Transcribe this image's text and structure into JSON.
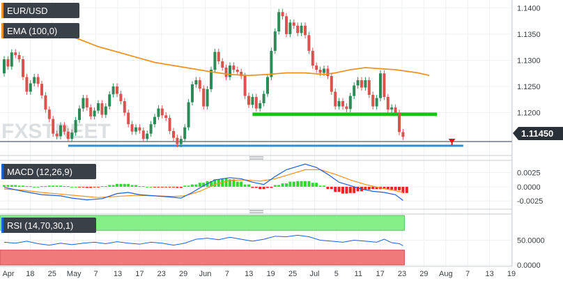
{
  "chart_data": {
    "type": "candlestick",
    "symbol": "EUR/USD",
    "last_price": "1.11450",
    "colors": {
      "up": "#2e8b57",
      "down": "#d9534f",
      "ema": "#f0921e",
      "support": "#16c316",
      "low_line": "#2b8fd9",
      "macd_line": "#1f5fd6",
      "signal_line": "#f0921e",
      "hist_up": "#33d633",
      "hist_down": "#ee2222",
      "rsi_line": "#1f5fd6",
      "overbought": "#86ee86",
      "oversold": "#f07a7a",
      "arrow": "#e01414",
      "label_bg": "#3a4048"
    },
    "x_labels": [
      "Apr",
      "18",
      "25",
      "May",
      "7",
      "13",
      "17",
      "23",
      "29",
      "Jun",
      "7",
      "13",
      "19",
      "25",
      "Jul",
      "5",
      "11",
      "17",
      "23",
      "29",
      "Aug",
      "7",
      "13",
      "19"
    ],
    "price_panel": {
      "y_ticks": [
        "1.1400",
        "1.1350",
        "1.1300",
        "1.1250",
        "1.1200"
      ],
      "y_range": [
        1.1125,
        1.1415
      ],
      "ema_label": "EMA (100,0)",
      "ema": [
        [
          0,
          1.1358
        ],
        [
          10,
          1.1358
        ],
        [
          15,
          1.1352
        ],
        [
          20,
          1.134
        ],
        [
          25,
          1.1326
        ],
        [
          30,
          1.1316
        ],
        [
          35,
          1.1306
        ],
        [
          40,
          1.1296
        ],
        [
          45,
          1.129
        ],
        [
          50,
          1.1284
        ],
        [
          55,
          1.1278
        ],
        [
          60,
          1.1273
        ],
        [
          65,
          1.1271
        ],
        [
          70,
          1.1273
        ],
        [
          75,
          1.1276
        ],
        [
          80,
          1.1276
        ],
        [
          85,
          1.1273
        ],
        [
          88,
          1.1276
        ],
        [
          92,
          1.1282
        ],
        [
          96,
          1.1286
        ],
        [
          100,
          1.1284
        ],
        [
          104,
          1.1282
        ],
        [
          107,
          1.1279
        ],
        [
          110,
          1.1276
        ],
        [
          113,
          1.1271
        ]
      ],
      "support_level": 1.1197,
      "support_range": [
        66,
        115
      ],
      "low_level": 1.1137,
      "low_range": [
        17,
        122
      ],
      "arrow_at": 119,
      "candles": [
        [
          0,
          1.1275,
          1.1302
        ],
        [
          1,
          1.1302,
          1.1288
        ],
        [
          2,
          1.1288,
          1.1315
        ],
        [
          3,
          1.1315,
          1.131
        ],
        [
          4,
          1.131,
          1.1302
        ],
        [
          5,
          1.1302,
          1.1268
        ],
        [
          6,
          1.1268,
          1.124
        ],
        [
          7,
          1.124,
          1.1256
        ],
        [
          8,
          1.1256,
          1.1268
        ],
        [
          9,
          1.1268,
          1.1255
        ],
        [
          10,
          1.1255,
          1.1233
        ],
        [
          11,
          1.1233,
          1.1206
        ],
        [
          12,
          1.1206,
          1.1188
        ],
        [
          13,
          1.1188,
          1.116
        ],
        [
          14,
          1.116,
          1.1155
        ],
        [
          15,
          1.1155,
          1.1176
        ],
        [
          16,
          1.1176,
          1.1164
        ],
        [
          17,
          1.1164,
          1.115
        ],
        [
          18,
          1.115,
          1.1162
        ],
        [
          19,
          1.1162,
          1.1186
        ],
        [
          20,
          1.1186,
          1.1208
        ],
        [
          21,
          1.1208,
          1.1228
        ],
        [
          22,
          1.1228,
          1.121
        ],
        [
          23,
          1.121,
          1.1193
        ],
        [
          24,
          1.1193,
          1.1204
        ],
        [
          25,
          1.1204,
          1.1218
        ],
        [
          26,
          1.1218,
          1.1196
        ],
        [
          27,
          1.1196,
          1.1212
        ],
        [
          28,
          1.1212,
          1.1235
        ],
        [
          29,
          1.1235,
          1.125
        ],
        [
          30,
          1.125,
          1.1236
        ],
        [
          31,
          1.1236,
          1.1222
        ],
        [
          32,
          1.1222,
          1.12
        ],
        [
          33,
          1.12,
          1.1178
        ],
        [
          34,
          1.1178,
          1.1164
        ],
        [
          35,
          1.1164,
          1.1172
        ],
        [
          36,
          1.1172,
          1.1166
        ],
        [
          37,
          1.1166,
          1.115
        ],
        [
          38,
          1.115,
          1.116
        ],
        [
          39,
          1.116,
          1.1178
        ],
        [
          40,
          1.1178,
          1.1192
        ],
        [
          41,
          1.1192,
          1.1208
        ],
        [
          42,
          1.1208,
          1.1195
        ],
        [
          43,
          1.1195,
          1.119
        ],
        [
          44,
          1.119,
          1.1165
        ],
        [
          45,
          1.1165,
          1.1152
        ],
        [
          46,
          1.1152,
          1.114
        ],
        [
          47,
          1.114,
          1.115
        ],
        [
          48,
          1.115,
          1.1172
        ],
        [
          49,
          1.1172,
          1.122
        ],
        [
          50,
          1.122,
          1.1254
        ],
        [
          51,
          1.1254,
          1.1262
        ],
        [
          52,
          1.1262,
          1.1246
        ],
        [
          53,
          1.1246,
          1.1212
        ],
        [
          54,
          1.1212,
          1.1245
        ],
        [
          55,
          1.1245,
          1.1282
        ],
        [
          56,
          1.1282,
          1.1316
        ],
        [
          57,
          1.1316,
          1.1298
        ],
        [
          58,
          1.1298,
          1.1286
        ],
        [
          59,
          1.1286,
          1.1268
        ],
        [
          60,
          1.1268,
          1.129
        ],
        [
          61,
          1.129,
          1.1282
        ],
        [
          62,
          1.1282,
          1.1278
        ],
        [
          63,
          1.1278,
          1.127
        ],
        [
          64,
          1.127,
          1.1232
        ],
        [
          65,
          1.1232,
          1.1215
        ],
        [
          66,
          1.1215,
          1.123
        ],
        [
          67,
          1.123,
          1.1208
        ],
        [
          68,
          1.1208,
          1.1218
        ],
        [
          69,
          1.1218,
          1.1236
        ],
        [
          70,
          1.1236,
          1.1268
        ],
        [
          71,
          1.1268,
          1.1318
        ],
        [
          72,
          1.1318,
          1.1355
        ],
        [
          73,
          1.1355,
          1.1392
        ],
        [
          74,
          1.1392,
          1.1384
        ],
        [
          75,
          1.1384,
          1.135
        ],
        [
          76,
          1.135,
          1.1372
        ],
        [
          77,
          1.1372,
          1.1366
        ],
        [
          78,
          1.1366,
          1.1352
        ],
        [
          79,
          1.1352,
          1.1366
        ],
        [
          80,
          1.1366,
          1.1348
        ],
        [
          81,
          1.1348,
          1.1318
        ],
        [
          82,
          1.1318,
          1.129
        ],
        [
          83,
          1.129,
          1.1282
        ],
        [
          84,
          1.1282,
          1.1276
        ],
        [
          85,
          1.1276,
          1.1284
        ],
        [
          86,
          1.1284,
          1.127
        ],
        [
          87,
          1.127,
          1.124
        ],
        [
          88,
          1.124,
          1.1212
        ],
        [
          89,
          1.1212,
          1.1222
        ],
        [
          90,
          1.1222,
          1.1212
        ],
        [
          91,
          1.1212,
          1.1207
        ],
        [
          92,
          1.1207,
          1.1232
        ],
        [
          93,
          1.1232,
          1.1252
        ],
        [
          94,
          1.1252,
          1.1262
        ],
        [
          95,
          1.1262,
          1.1248
        ],
        [
          96,
          1.1248,
          1.1262
        ],
        [
          97,
          1.1262,
          1.1234
        ],
        [
          98,
          1.1234,
          1.1212
        ],
        [
          99,
          1.1212,
          1.1228
        ],
        [
          100,
          1.1228,
          1.1275
        ],
        [
          101,
          1.1275,
          1.123
        ],
        [
          102,
          1.123,
          1.1206
        ],
        [
          103,
          1.1206,
          1.121
        ],
        [
          104,
          1.121,
          1.12
        ],
        [
          105,
          1.12,
          1.1163
        ],
        [
          106,
          1.1163,
          1.1154
        ]
      ]
    },
    "macd_panel": {
      "title": "MACD (12,26,9)",
      "y_ticks": [
        "0.0025",
        "0.0000",
        "-0.0025"
      ],
      "y_range": [
        -0.0037,
        0.0044
      ],
      "macd": [
        [
          0,
          -0.0001
        ],
        [
          5,
          -0.0008
        ],
        [
          10,
          -0.0014
        ],
        [
          15,
          -0.0016
        ],
        [
          18,
          -0.002
        ],
        [
          22,
          -0.0023
        ],
        [
          26,
          -0.0021
        ],
        [
          30,
          -0.0012
        ],
        [
          33,
          -0.001
        ],
        [
          36,
          -0.0014
        ],
        [
          40,
          -0.0016
        ],
        [
          44,
          -0.0018
        ],
        [
          47,
          -0.002
        ],
        [
          50,
          -0.001
        ],
        [
          53,
          0.0002
        ],
        [
          56,
          0.0012
        ],
        [
          60,
          0.0016
        ],
        [
          63,
          0.0014
        ],
        [
          66,
          0.0008
        ],
        [
          69,
          0.0004
        ],
        [
          72,
          0.0018
        ],
        [
          75,
          0.003
        ],
        [
          78,
          0.0036
        ],
        [
          80,
          0.004
        ],
        [
          83,
          0.0034
        ],
        [
          86,
          0.0022
        ],
        [
          89,
          0.0008
        ],
        [
          92,
          0.0002
        ],
        [
          95,
          -0.0004
        ],
        [
          98,
          -0.0008
        ],
        [
          101,
          -0.001
        ],
        [
          104,
          -0.0014
        ],
        [
          106,
          -0.0024
        ]
      ],
      "signal": [
        [
          0,
          -0.0004
        ],
        [
          5,
          -0.0006
        ],
        [
          10,
          -0.001
        ],
        [
          15,
          -0.0013
        ],
        [
          20,
          -0.0016
        ],
        [
          25,
          -0.0019
        ],
        [
          30,
          -0.0017
        ],
        [
          35,
          -0.0015
        ],
        [
          40,
          -0.0016
        ],
        [
          45,
          -0.0017
        ],
        [
          48,
          -0.0016
        ],
        [
          52,
          -0.0008
        ],
        [
          56,
          0.0004
        ],
        [
          60,
          0.0011
        ],
        [
          64,
          0.0012
        ],
        [
          68,
          0.001
        ],
        [
          72,
          0.0014
        ],
        [
          76,
          0.0022
        ],
        [
          80,
          0.003
        ],
        [
          84,
          0.003
        ],
        [
          88,
          0.0022
        ],
        [
          92,
          0.0012
        ],
        [
          96,
          0.0004
        ],
        [
          100,
          -0.0002
        ],
        [
          104,
          -0.0007
        ],
        [
          106,
          -0.001
        ]
      ],
      "histogram": [
        [
          0,
          0.0003
        ],
        [
          2,
          0.0003
        ],
        [
          4,
          0.0002
        ],
        [
          6,
          0.0001
        ],
        [
          8,
          0.0
        ],
        [
          10,
          0.0001
        ],
        [
          12,
          0.0002
        ],
        [
          14,
          0.0002
        ],
        [
          16,
          0.0001
        ],
        [
          18,
          0.0
        ],
        [
          20,
          -0.0001
        ],
        [
          22,
          -0.0002
        ],
        [
          24,
          -0.0001
        ],
        [
          26,
          0.0001
        ],
        [
          28,
          0.0003
        ],
        [
          30,
          0.0005
        ],
        [
          32,
          0.0005
        ],
        [
          34,
          0.0003
        ],
        [
          36,
          0.0001
        ],
        [
          38,
          0.0
        ],
        [
          40,
          -0.0001
        ],
        [
          42,
          -0.0001
        ],
        [
          44,
          -0.0001
        ],
        [
          46,
          -0.0002
        ],
        [
          48,
          0.0002
        ],
        [
          50,
          0.0004
        ],
        [
          52,
          0.0007
        ],
        [
          54,
          0.001
        ],
        [
          56,
          0.0013
        ],
        [
          58,
          0.0015
        ],
        [
          60,
          0.0013
        ],
        [
          62,
          0.0009
        ],
        [
          64,
          0.0004
        ],
        [
          66,
          -0.0002
        ],
        [
          68,
          -0.0004
        ],
        [
          70,
          -0.0002
        ],
        [
          72,
          0.0003
        ],
        [
          74,
          0.0006
        ],
        [
          76,
          0.0009
        ],
        [
          78,
          0.001
        ],
        [
          80,
          0.001
        ],
        [
          82,
          0.0007
        ],
        [
          84,
          0.0002
        ],
        [
          86,
          -0.0004
        ],
        [
          88,
          -0.0009
        ],
        [
          90,
          -0.0012
        ],
        [
          92,
          -0.0011
        ],
        [
          94,
          -0.0008
        ],
        [
          96,
          -0.0005
        ],
        [
          98,
          -0.0004
        ],
        [
          100,
          -0.0004
        ],
        [
          102,
          -0.0005
        ],
        [
          104,
          -0.0006
        ],
        [
          106,
          -0.0011
        ]
      ]
    },
    "rsi_panel": {
      "title": "RSI (14,70,30,1)",
      "y_ticks": [
        "50.0000",
        "0.0000"
      ],
      "y_range": [
        0,
        100
      ],
      "overbought": 70,
      "oversold": 30,
      "rsi": [
        [
          0,
          46
        ],
        [
          3,
          44
        ],
        [
          6,
          48
        ],
        [
          9,
          43
        ],
        [
          12,
          40
        ],
        [
          15,
          44
        ],
        [
          18,
          41
        ],
        [
          21,
          44
        ],
        [
          24,
          46
        ],
        [
          27,
          43
        ],
        [
          30,
          47
        ],
        [
          33,
          44
        ],
        [
          36,
          42
        ],
        [
          39,
          46
        ],
        [
          42,
          44
        ],
        [
          45,
          40
        ],
        [
          48,
          44
        ],
        [
          51,
          52
        ],
        [
          54,
          54
        ],
        [
          57,
          51
        ],
        [
          60,
          56
        ],
        [
          63,
          52
        ],
        [
          66,
          48
        ],
        [
          69,
          52
        ],
        [
          72,
          58
        ],
        [
          75,
          57
        ],
        [
          78,
          60
        ],
        [
          81,
          57
        ],
        [
          84,
          50
        ],
        [
          87,
          48
        ],
        [
          90,
          46
        ],
        [
          93,
          50
        ],
        [
          96,
          48
        ],
        [
          99,
          46
        ],
        [
          101,
          52
        ],
        [
          103,
          45
        ],
        [
          105,
          43
        ],
        [
          106,
          39
        ]
      ]
    }
  }
}
